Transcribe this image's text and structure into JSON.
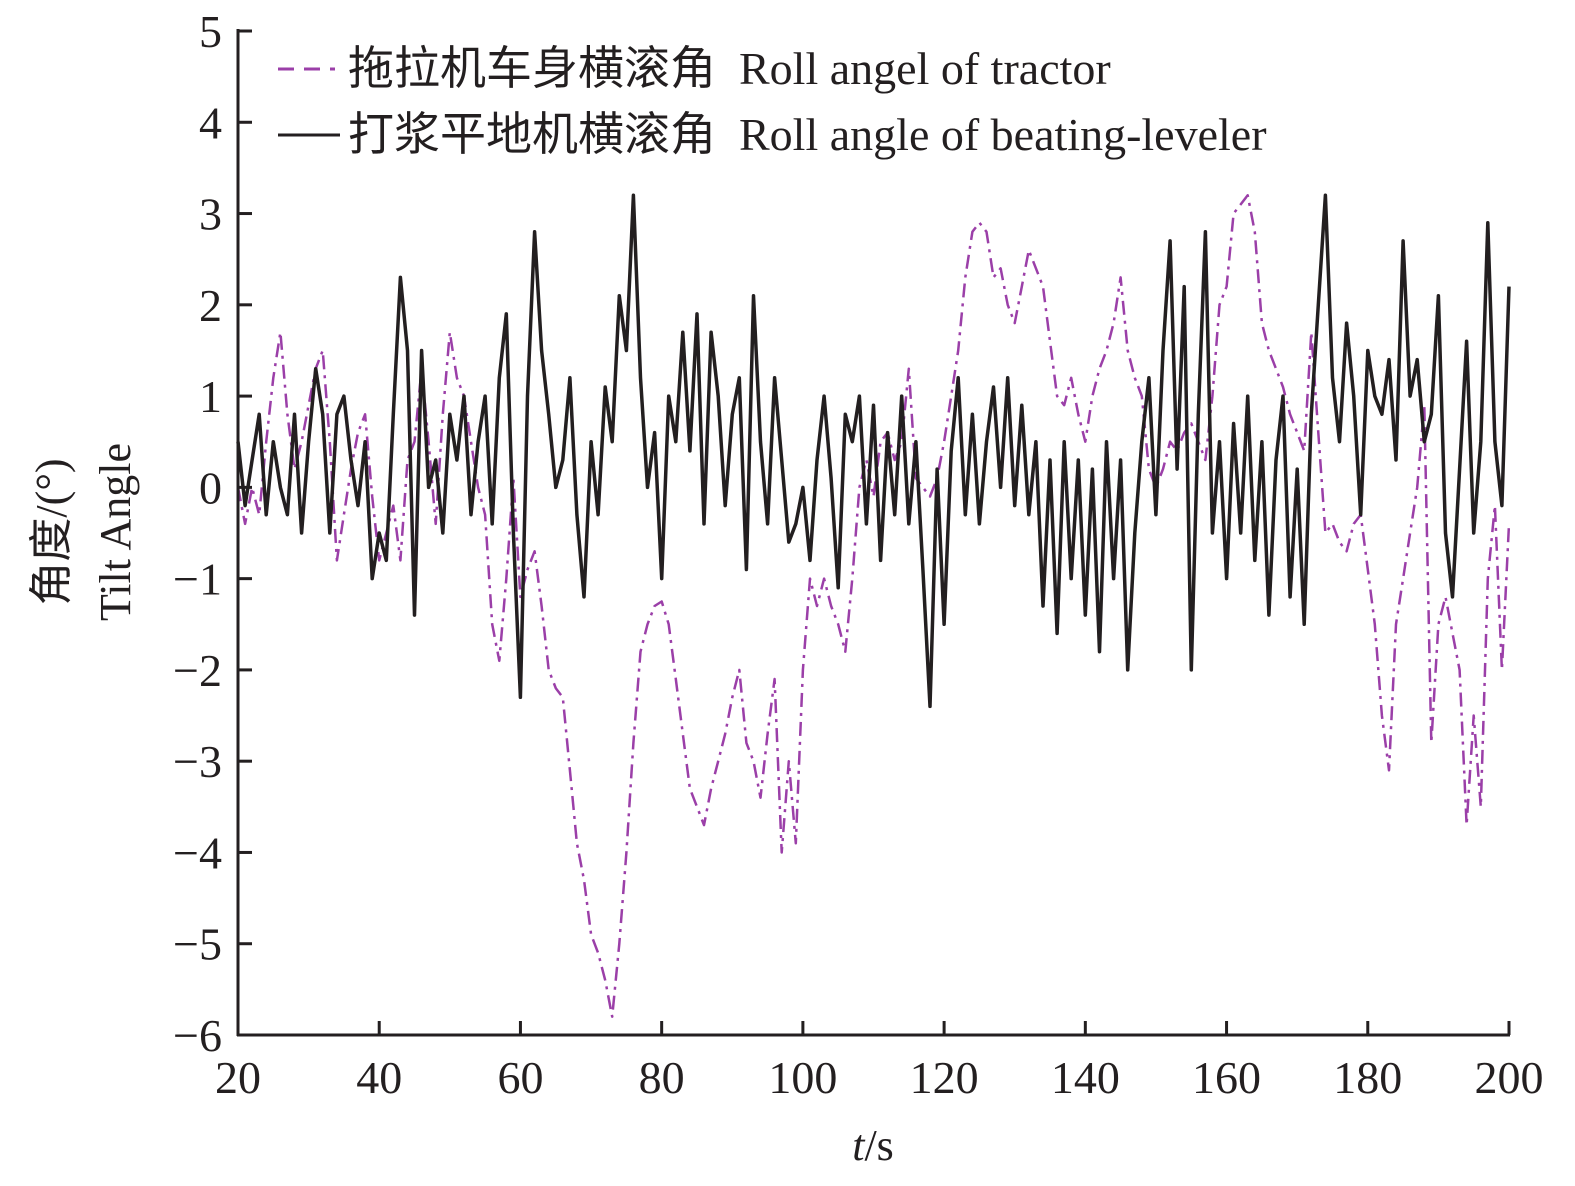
{
  "chart_data": {
    "type": "line",
    "title": "",
    "xlabel_italic": "t",
    "xlabel_unit": "/s",
    "ylabel_cn": "角度/(°)",
    "ylabel_en": "Tilt Angle",
    "xlim": [
      20,
      200
    ],
    "ylim": [
      -6,
      5
    ],
    "xticks": [
      20,
      40,
      60,
      80,
      100,
      120,
      140,
      160,
      180,
      200
    ],
    "yticks": [
      5,
      4,
      3,
      2,
      1,
      0,
      -1,
      -2,
      -3,
      -4,
      -5,
      -6
    ],
    "ytick_labels": [
      "5",
      "4",
      "3",
      "2",
      "1",
      "0",
      "−1",
      "−2",
      "−3",
      "−4",
      "−5",
      "−6"
    ],
    "grid": false,
    "legend_position": "top-left",
    "x_start": 20,
    "x_step": 1,
    "series": [
      {
        "name": "拖拉机车身横滚角  Roll angel of tractor",
        "color": "#9b3fa8",
        "style": "dashed",
        "values": [
          0,
          -0.4,
          0,
          -0.3,
          0.5,
          1.2,
          1.7,
          0.8,
          0.2,
          0.5,
          0.9,
          1.3,
          1.5,
          0.5,
          -0.8,
          -0.3,
          0.2,
          0.6,
          0.8,
          -0.1,
          -0.8,
          -0.5,
          -0.2,
          -0.8,
          0.3,
          0.5,
          1.3,
          0.5,
          -0.4,
          0.8,
          1.7,
          1.2,
          1.0,
          0.5,
          0.0,
          -0.3,
          -1.5,
          -1.9,
          -1.0,
          0.1,
          -1.2,
          -0.9,
          -0.7,
          -1.3,
          -2.0,
          -2.2,
          -2.3,
          -3.1,
          -3.9,
          -4.3,
          -4.9,
          -5.1,
          -5.4,
          -5.8,
          -5.0,
          -4.0,
          -2.8,
          -1.8,
          -1.5,
          -1.3,
          -1.25,
          -1.5,
          -2.1,
          -2.7,
          -3.3,
          -3.5,
          -3.7,
          -3.3,
          -3.0,
          -2.7,
          -2.3,
          -2.0,
          -2.8,
          -3.0,
          -3.4,
          -2.7,
          -2.1,
          -4.0,
          -3.0,
          -3.9,
          -2.0,
          -1.0,
          -1.3,
          -1.0,
          -1.3,
          -1.5,
          -1.8,
          -1.0,
          0.0,
          0.3,
          -0.1,
          0.5,
          0.6,
          0.3,
          0.5,
          1.3,
          0.1,
          0.0,
          -0.1,
          0.1,
          0.5,
          1.0,
          1.5,
          2.3,
          2.8,
          2.9,
          2.8,
          2.3,
          2.4,
          2.0,
          1.8,
          2.2,
          2.6,
          2.4,
          2.2,
          1.6,
          1.0,
          0.9,
          1.2,
          0.8,
          0.5,
          1.0,
          1.3,
          1.5,
          1.8,
          2.3,
          1.5,
          1.2,
          1.0,
          0.2,
          0.0,
          0.2,
          0.5,
          0.4,
          0.6,
          0.7,
          0.5,
          0.3,
          1.0,
          2.0,
          2.2,
          3.0,
          3.1,
          3.2,
          2.8,
          1.8,
          1.5,
          1.3,
          1.1,
          0.8,
          0.6,
          0.4,
          1.7,
          0.6,
          -0.5,
          -0.4,
          -0.6,
          -0.7,
          -0.4,
          -0.3,
          -0.9,
          -1.5,
          -2.5,
          -3.1,
          -1.5,
          -1.0,
          -0.5,
          0.0,
          0.9,
          -2.8,
          -1.5,
          -1.2,
          -1.6,
          -2.0,
          -3.7,
          -2.5,
          -3.5,
          -1.0,
          -0.2,
          -2.0,
          -0.4
        ]
      },
      {
        "name": "打浆平地机横滚角  Roll angle of beating-leveler",
        "color": "#231f20",
        "style": "solid",
        "values": [
          0.5,
          -0.2,
          0.3,
          0.8,
          -0.3,
          0.5,
          0,
          -0.3,
          0.8,
          -0.5,
          0.5,
          1.3,
          0.8,
          -0.5,
          0.8,
          1.0,
          0.3,
          -0.2,
          0.5,
          -1.0,
          -0.5,
          -0.8,
          0.8,
          2.3,
          1.5,
          -1.4,
          1.5,
          0,
          0.3,
          -0.5,
          0.8,
          0.3,
          1.0,
          -0.3,
          0.5,
          1.0,
          -0.4,
          1.2,
          1.9,
          -0.5,
          -2.3,
          1.0,
          2.8,
          1.5,
          0.8,
          0,
          0.3,
          1.2,
          -0.3,
          -1.2,
          0.5,
          -0.3,
          1.1,
          0.5,
          2.1,
          1.5,
          3.2,
          1.2,
          0,
          0.6,
          -1.0,
          1.0,
          0.5,
          1.7,
          0.4,
          1.9,
          -0.4,
          1.7,
          1.0,
          -0.2,
          0.8,
          1.2,
          -0.9,
          2.1,
          0.5,
          -0.4,
          1.2,
          0.3,
          -0.6,
          -0.4,
          0,
          -0.8,
          0.3,
          1.0,
          0.1,
          -1.1,
          0.8,
          0.5,
          1.0,
          -0.4,
          0.9,
          -0.8,
          0.6,
          -0.3,
          1.0,
          -0.4,
          0.5,
          -0.9,
          -2.4,
          0.2,
          -1.5,
          0.4,
          1.2,
          -0.3,
          0.8,
          -0.4,
          0.5,
          1.1,
          0.0,
          1.2,
          -0.2,
          0.9,
          -0.3,
          0.5,
          -1.3,
          0.3,
          -1.6,
          0.5,
          -1.0,
          0.3,
          -1.4,
          0.2,
          -1.8,
          0.5,
          -1.0,
          0.3,
          -2.0,
          -0.5,
          0.5,
          1.2,
          -0.3,
          1.5,
          2.7,
          0.2,
          2.2,
          -2.0,
          0.8,
          2.8,
          -0.5,
          0.5,
          -1.0,
          0.7,
          -0.5,
          1.0,
          -0.8,
          0.5,
          -1.4,
          0.3,
          1.0,
          -1.2,
          0.2,
          -1.5,
          0.8,
          2.0,
          3.2,
          1.2,
          0.5,
          1.8,
          1.0,
          -0.3,
          1.5,
          1.0,
          0.8,
          1.4,
          0.3,
          2.7,
          1.0,
          1.4,
          0.5,
          0.8,
          2.1,
          -0.5,
          -1.2,
          0.2,
          1.6,
          -0.5,
          0.5,
          2.9,
          0.5,
          -0.2,
          2.2
        ]
      }
    ]
  }
}
